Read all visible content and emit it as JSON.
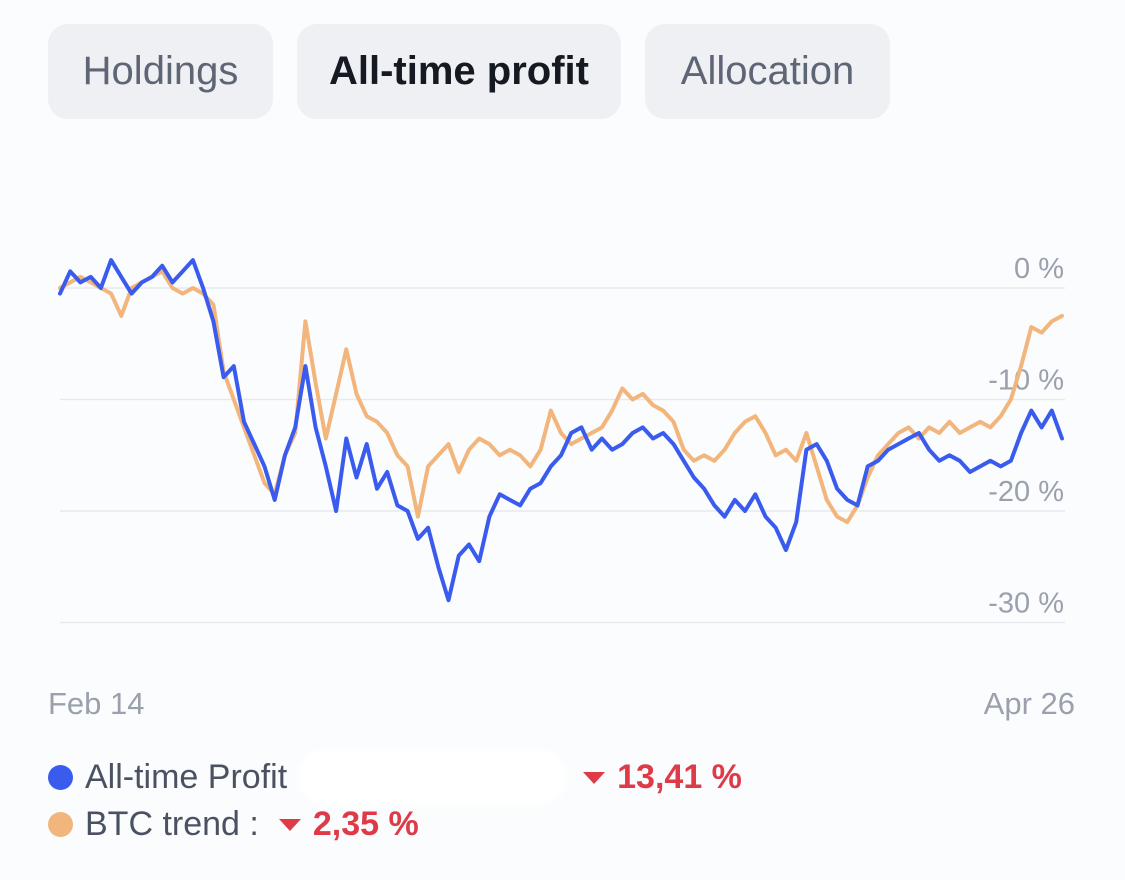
{
  "tabs": [
    {
      "label": "Holdings",
      "active": false
    },
    {
      "label": "All-time profit",
      "active": true
    },
    {
      "label": "Allocation",
      "active": false
    }
  ],
  "chart_data": {
    "type": "line",
    "xlabel": "",
    "ylabel": "",
    "x_start_label": "Feb 14",
    "x_end_label": "Apr 26",
    "y_ticks": [
      0,
      -10,
      -20,
      -30
    ],
    "y_tick_labels": [
      "0 %",
      "-10 %",
      "-20 %",
      "-30 %"
    ],
    "ylim": [
      -30,
      0
    ],
    "grid": true,
    "legend_placement": "bottom",
    "series": [
      {
        "name": "All-time Profit",
        "color": "#3a5cee",
        "values": [
          -0.5,
          1.5,
          0.5,
          1.0,
          0.0,
          2.5,
          1.0,
          -0.5,
          0.5,
          1.0,
          2.0,
          0.5,
          1.5,
          2.5,
          0.0,
          -3.0,
          -8.0,
          -7.0,
          -12.0,
          -14.0,
          -16.0,
          -19.0,
          -15.0,
          -12.5,
          -7.0,
          -12.5,
          -16.0,
          -20.0,
          -13.5,
          -17.0,
          -14.0,
          -18.0,
          -16.5,
          -19.5,
          -20.0,
          -22.5,
          -21.5,
          -25.0,
          -28.0,
          -24.0,
          -23.0,
          -24.5,
          -20.5,
          -18.5,
          -19.0,
          -19.5,
          -18.0,
          -17.5,
          -16.0,
          -15.0,
          -13.0,
          -12.5,
          -14.5,
          -13.5,
          -14.5,
          -14.0,
          -13.0,
          -12.5,
          -13.5,
          -13.0,
          -14.0,
          -15.5,
          -17.0,
          -18.0,
          -19.5,
          -20.5,
          -19.0,
          -20.0,
          -18.5,
          -20.5,
          -21.5,
          -23.5,
          -21.0,
          -14.5,
          -14.0,
          -15.5,
          -18.0,
          -19.0,
          -19.5,
          -16.0,
          -15.5,
          -14.5,
          -14.0,
          -13.5,
          -13.0,
          -14.5,
          -15.5,
          -15.0,
          -15.5,
          -16.5,
          -16.0,
          -15.5,
          -16.0,
          -15.5,
          -13.0,
          -11.0,
          -12.5,
          -11.0,
          -13.5
        ]
      },
      {
        "name": "BTC trend",
        "color": "#f2b57c",
        "values": [
          0.0,
          0.5,
          1.0,
          0.5,
          0.0,
          -0.5,
          -2.5,
          0.0,
          0.5,
          1.0,
          1.5,
          0.0,
          -0.5,
          0.0,
          -0.5,
          -1.5,
          -7.5,
          -10.0,
          -12.5,
          -15.0,
          -17.5,
          -18.5,
          -15.0,
          -13.0,
          -3.0,
          -8.5,
          -13.5,
          -9.5,
          -5.5,
          -9.5,
          -11.5,
          -12.0,
          -13.0,
          -15.0,
          -16.0,
          -20.5,
          -16.0,
          -15.0,
          -14.0,
          -16.5,
          -14.5,
          -13.5,
          -14.0,
          -15.0,
          -14.5,
          -15.0,
          -16.0,
          -14.5,
          -11.0,
          -13.0,
          -14.0,
          -13.5,
          -13.0,
          -12.5,
          -11.0,
          -9.0,
          -10.0,
          -9.5,
          -10.5,
          -11.0,
          -12.0,
          -14.5,
          -15.5,
          -15.0,
          -15.5,
          -14.5,
          -13.0,
          -12.0,
          -11.5,
          -13.0,
          -15.0,
          -14.5,
          -15.5,
          -13.0,
          -16.0,
          -19.0,
          -20.5,
          -21.0,
          -19.5,
          -17.0,
          -15.0,
          -14.0,
          -13.0,
          -12.5,
          -13.5,
          -12.5,
          -13.0,
          -12.0,
          -13.0,
          -12.5,
          -12.0,
          -12.5,
          -11.5,
          -10.0,
          -7.0,
          -3.5,
          -4.0,
          -3.0,
          -2.5
        ]
      }
    ]
  },
  "legend": {
    "profit_label": "All-time Profit",
    "profit_value": "13,41 %",
    "btc_label": "BTC trend :",
    "btc_value": "2,35 %"
  }
}
